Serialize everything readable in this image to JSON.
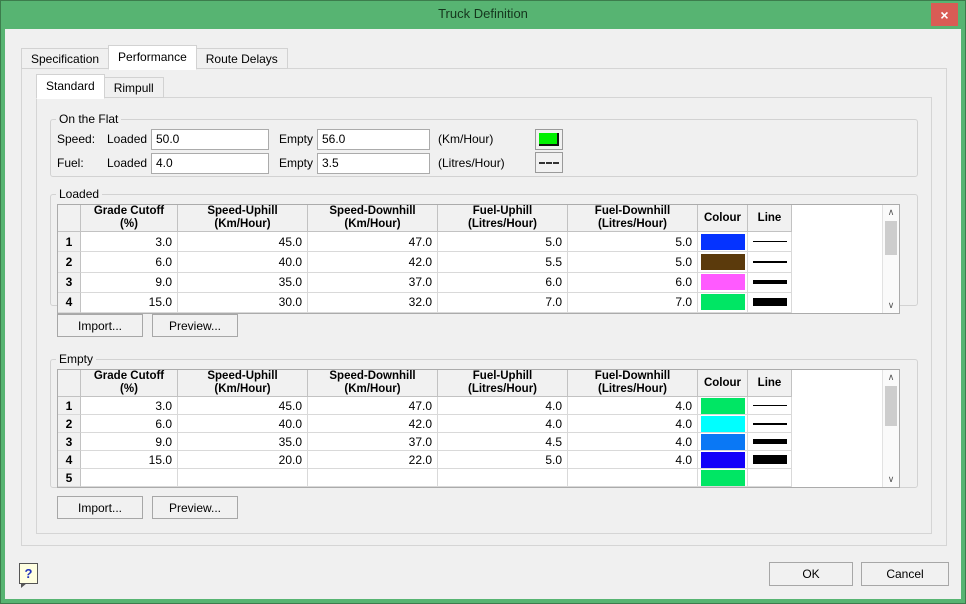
{
  "window": {
    "title": "Truck Definition",
    "close_glyph": "×"
  },
  "colors": {
    "titlebar": "#57b472",
    "close_button": "#d95c55",
    "flat_swatch": "#00f000"
  },
  "tabs": {
    "items": [
      {
        "label": "Specification",
        "active": false
      },
      {
        "label": "Performance",
        "active": true
      },
      {
        "label": "Route Delays",
        "active": false
      }
    ]
  },
  "subtabs": {
    "items": [
      {
        "label": "Standard",
        "active": true
      },
      {
        "label": "Rimpull",
        "active": false
      }
    ]
  },
  "on_the_flat": {
    "legend": "On the Flat",
    "speed": {
      "label": "Speed:",
      "loaded_label": "Loaded",
      "loaded_value": "50.0",
      "empty_label": "Empty",
      "empty_value": "56.0",
      "unit": "(Km/Hour)"
    },
    "fuel": {
      "label": "Fuel:",
      "loaded_label": "Loaded",
      "loaded_value": "4.0",
      "empty_label": "Empty",
      "empty_value": "3.5",
      "unit": "(Litres/Hour)"
    }
  },
  "table_columns": [
    {
      "line1": "Grade Cutoff",
      "line2": "(%)"
    },
    {
      "line1": "Speed-Uphill",
      "line2": "(Km/Hour)"
    },
    {
      "line1": "Speed-Downhill",
      "line2": "(Km/Hour)"
    },
    {
      "line1": "Fuel-Uphill",
      "line2": "(Litres/Hour)"
    },
    {
      "line1": "Fuel-Downhill",
      "line2": "(Litres/Hour)"
    },
    {
      "line1": "Colour",
      "line2": ""
    },
    {
      "line1": "Line",
      "line2": ""
    }
  ],
  "loaded": {
    "legend": "Loaded",
    "import_label": "Import...",
    "preview_label": "Preview...",
    "rows": [
      {
        "num": "1",
        "grade": "3.0",
        "speed_uphill": "45.0",
        "speed_downhill": "47.0",
        "fuel_uphill": "5.0",
        "fuel_downhill": "5.0",
        "colour": "#0533ff",
        "line_weight": "1px"
      },
      {
        "num": "2",
        "grade": "6.0",
        "speed_uphill": "40.0",
        "speed_downhill": "42.0",
        "fuel_uphill": "5.5",
        "fuel_downhill": "5.0",
        "colour": "#5b3a0c",
        "line_weight": "2px"
      },
      {
        "num": "3",
        "grade": "9.0",
        "speed_uphill": "35.0",
        "speed_downhill": "37.0",
        "fuel_uphill": "6.0",
        "fuel_downhill": "6.0",
        "colour": "#ff5aff",
        "line_weight": "4px"
      },
      {
        "num": "4",
        "grade": "15.0",
        "speed_uphill": "30.0",
        "speed_downhill": "32.0",
        "fuel_uphill": "7.0",
        "fuel_downhill": "7.0",
        "colour": "#00e664",
        "line_weight": "8px",
        "partial": true
      }
    ]
  },
  "empty": {
    "legend": "Empty",
    "import_label": "Import...",
    "preview_label": "Preview...",
    "rows": [
      {
        "num": "1",
        "grade": "3.0",
        "speed_uphill": "45.0",
        "speed_downhill": "47.0",
        "fuel_uphill": "4.0",
        "fuel_downhill": "4.0",
        "colour": "#00e664",
        "line_weight": "1px"
      },
      {
        "num": "2",
        "grade": "6.0",
        "speed_uphill": "40.0",
        "speed_downhill": "42.0",
        "fuel_uphill": "4.0",
        "fuel_downhill": "4.0",
        "colour": "#00ffff",
        "line_weight": "2px"
      },
      {
        "num": "3",
        "grade": "9.0",
        "speed_uphill": "35.0",
        "speed_downhill": "37.0",
        "fuel_uphill": "4.5",
        "fuel_downhill": "4.0",
        "colour": "#0a78f5",
        "line_weight": "5px"
      },
      {
        "num": "4",
        "grade": "15.0",
        "speed_uphill": "20.0",
        "speed_downhill": "22.0",
        "fuel_uphill": "5.0",
        "fuel_downhill": "4.0",
        "colour": "#1302fa",
        "line_weight": "9px"
      },
      {
        "num": "5",
        "colour": "#00e664",
        "partial": true
      }
    ]
  },
  "scrollbar": {
    "up_glyph": "∧",
    "down_glyph": "∨"
  },
  "footer": {
    "help_glyph": "?",
    "ok_label": "OK",
    "cancel_label": "Cancel"
  }
}
